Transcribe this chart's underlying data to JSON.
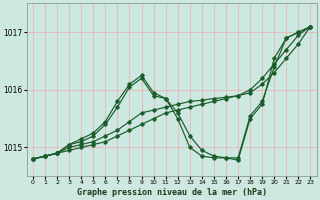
{
  "xlabel": "Graphe pression niveau de la mer (hPa)",
  "xlim": [
    -0.5,
    23.5
  ],
  "ylim": [
    1014.5,
    1017.5
  ],
  "yticks": [
    1015,
    1016,
    1017
  ],
  "xticks": [
    0,
    1,
    2,
    3,
    4,
    5,
    6,
    7,
    8,
    9,
    10,
    11,
    12,
    13,
    14,
    15,
    16,
    17,
    18,
    19,
    20,
    21,
    22,
    23
  ],
  "background_color": "#cce8e0",
  "grid_color": "#b0d4cc",
  "line_color": "#1a5c2a",
  "lines": [
    {
      "x": [
        0,
        1,
        2,
        3,
        4,
        5,
        6,
        7,
        8,
        9,
        10,
        11,
        12,
        13,
        14,
        15,
        16,
        17,
        18,
        19,
        20,
        21,
        22,
        23
      ],
      "y": [
        1014.8,
        1014.85,
        1014.9,
        1014.95,
        1015.0,
        1015.05,
        1015.1,
        1015.2,
        1015.3,
        1015.4,
        1015.5,
        1015.6,
        1015.65,
        1015.7,
        1015.75,
        1015.8,
        1015.85,
        1015.9,
        1015.95,
        1016.1,
        1016.3,
        1016.55,
        1016.8,
        1017.1
      ]
    },
    {
      "x": [
        0,
        1,
        2,
        3,
        4,
        5,
        6,
        7,
        8,
        9,
        10,
        11,
        12,
        13,
        14,
        15,
        16,
        17,
        18,
        19,
        20,
        21,
        22,
        23
      ],
      "y": [
        1014.8,
        1014.85,
        1014.9,
        1015.0,
        1015.05,
        1015.1,
        1015.2,
        1015.3,
        1015.45,
        1015.6,
        1015.65,
        1015.7,
        1015.75,
        1015.8,
        1015.82,
        1015.85,
        1015.87,
        1015.9,
        1016.0,
        1016.2,
        1016.45,
        1016.7,
        1016.95,
        1017.1
      ]
    },
    {
      "x": [
        0,
        1,
        2,
        3,
        4,
        5,
        6,
        7,
        8,
        9,
        10,
        11,
        12,
        13,
        14,
        15,
        16,
        17,
        18,
        19,
        20,
        21,
        22,
        23
      ],
      "y": [
        1014.8,
        1014.85,
        1014.9,
        1015.05,
        1015.1,
        1015.2,
        1015.4,
        1015.7,
        1016.05,
        1016.2,
        1015.9,
        1015.85,
        1015.6,
        1015.2,
        1014.95,
        1014.85,
        1014.82,
        1014.82,
        1015.55,
        1015.8,
        1016.4,
        1016.9,
        1017.0,
        1017.1
      ]
    },
    {
      "x": [
        0,
        1,
        2,
        3,
        4,
        5,
        6,
        7,
        8,
        9,
        10,
        11,
        12,
        13,
        14,
        15,
        16,
        17,
        18,
        19,
        20,
        21,
        22,
        23
      ],
      "y": [
        1014.8,
        1014.85,
        1014.9,
        1015.05,
        1015.15,
        1015.25,
        1015.45,
        1015.8,
        1016.1,
        1016.25,
        1015.95,
        1015.85,
        1015.5,
        1015.0,
        1014.85,
        1014.82,
        1014.82,
        1014.78,
        1015.5,
        1015.75,
        1016.55,
        1016.9,
        1017.0,
        1017.1
      ]
    }
  ]
}
